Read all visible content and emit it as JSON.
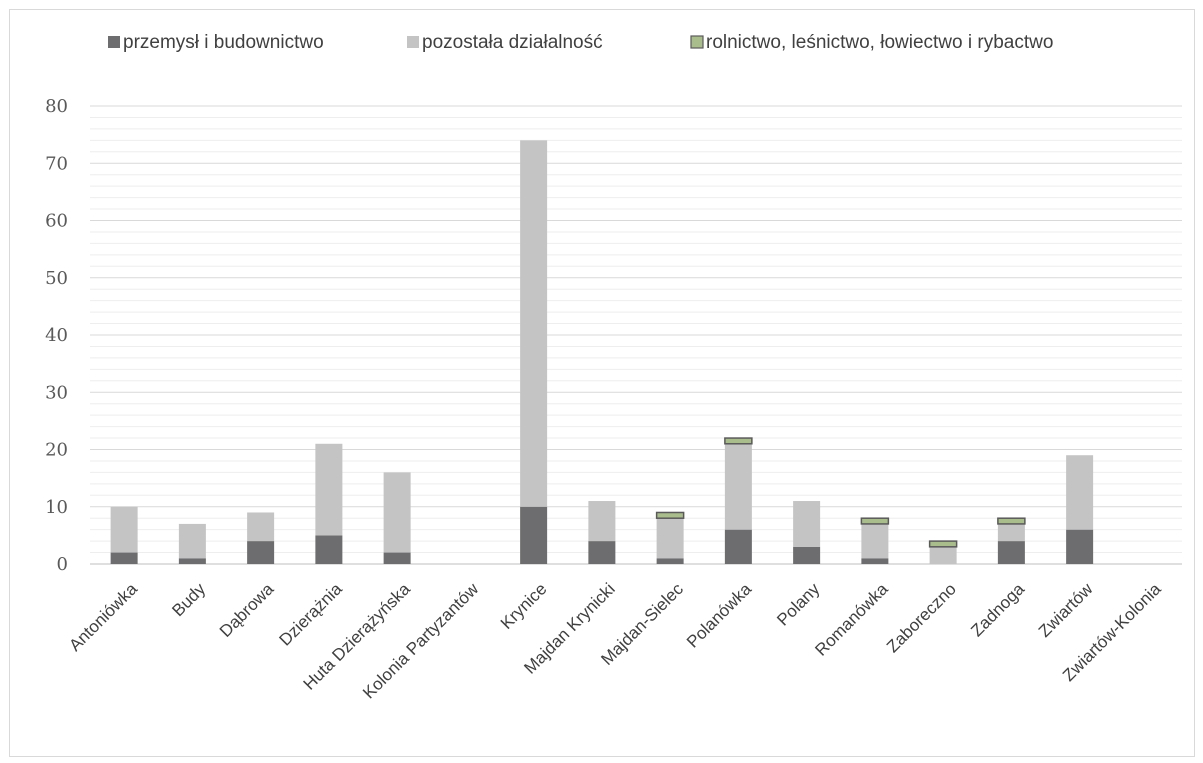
{
  "chart_data": {
    "type": "bar",
    "stacked": true,
    "title": "",
    "xlabel": "",
    "ylabel": "",
    "ylim": [
      0,
      80
    ],
    "y_major_step": 10,
    "y_minor_step": 2,
    "grid": true,
    "legend_position": "top",
    "categories": [
      "Antoniówka",
      "Budy",
      "Dąbrowa",
      "Dzierążnia",
      "Huta Dzierążyńska",
      "Kolonia Partyzantów",
      "Krynice",
      "Majdan Krynicki",
      "Majdan-Sielec",
      "Polanówka",
      "Polany",
      "Romanówka",
      "Zaboreczno",
      "Zadnoga",
      "Zwiartów",
      "Zwiartów-Kolonia"
    ],
    "series": [
      {
        "name": "przemysł i budownictwo",
        "color": "#6d6d6f",
        "values": [
          2,
          1,
          4,
          5,
          2,
          0,
          10,
          4,
          1,
          6,
          3,
          1,
          0,
          4,
          6,
          0
        ]
      },
      {
        "name": "pozostała działalność",
        "color": "#c4c4c4",
        "values": [
          8,
          6,
          5,
          16,
          14,
          0,
          64,
          7,
          7,
          15,
          8,
          6,
          3,
          3,
          13,
          0
        ]
      },
      {
        "name": "rolnictwo, leśnictwo, łowiectwo i rybactwo",
        "color": "#a9bd8c",
        "border": "#5a5a5a",
        "values": [
          0,
          0,
          0,
          0,
          0,
          0,
          0,
          0,
          1,
          1,
          0,
          1,
          1,
          1,
          0,
          0
        ]
      }
    ]
  }
}
